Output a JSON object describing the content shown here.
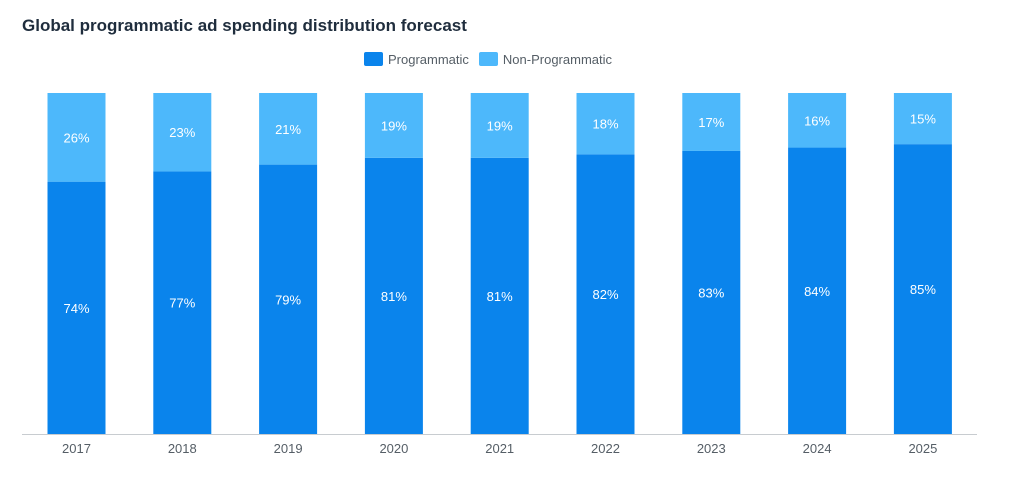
{
  "chart_data": {
    "type": "bar",
    "stacked": true,
    "title": "Global programmatic ad spending distribution forecast",
    "categories": [
      "2017",
      "2018",
      "2019",
      "2020",
      "2021",
      "2022",
      "2023",
      "2024",
      "2025"
    ],
    "series": [
      {
        "name": "Programmatic",
        "color": "#0a84ec",
        "values": [
          74,
          77,
          79,
          81,
          81,
          82,
          83,
          84,
          85
        ]
      },
      {
        "name": "Non-Programmatic",
        "color": "#4db8fb",
        "values": [
          26,
          23,
          21,
          19,
          19,
          18,
          17,
          16,
          15
        ]
      }
    ],
    "value_suffix": "%",
    "ylim": [
      0,
      100
    ],
    "grid": false,
    "legend": "top-center"
  }
}
